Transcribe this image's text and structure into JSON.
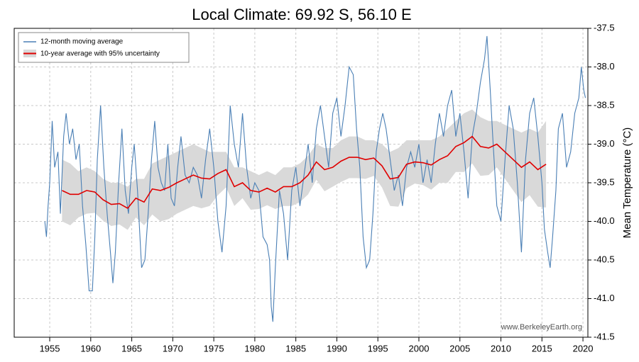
{
  "chart_data": {
    "type": "line",
    "title": "Local Climate: 69.92 S, 56.10 E",
    "y_label": "Mean Temperature (°C)",
    "watermark": "www.BerkeleyEarth.org",
    "xlim": [
      1950.67,
      2020.6
    ],
    "ylim": [
      -41.5,
      -37.5
    ],
    "xticks": [
      1955,
      1960,
      1965,
      1970,
      1975,
      1980,
      1985,
      1990,
      1995,
      2000,
      2005,
      2010,
      2015,
      2020
    ],
    "yticks": [
      -37.5,
      {
        "value": -38,
        "label": "-38.0"
      },
      -38.5,
      {
        "value": -39,
        "label": "-39.0"
      },
      -39.5,
      {
        "value": -40,
        "label": "-40.0"
      },
      -40.5,
      {
        "value": -41,
        "label": "-41.0"
      },
      -41.5
    ],
    "grid": true,
    "legend_position": "upper left",
    "series": [
      {
        "name": "12-month moving average",
        "color": "#4a7fb5",
        "x": [
          1954.4,
          1954.6,
          1954.8,
          1955.0,
          1955.3,
          1955.6,
          1956.0,
          1956.3,
          1956.7,
          1957.0,
          1957.4,
          1957.8,
          1958.2,
          1958.6,
          1959.0,
          1959.4,
          1959.8,
          1960.2,
          1960.5,
          1960.8,
          1961.2,
          1961.6,
          1962.0,
          1962.4,
          1962.7,
          1963.0,
          1963.4,
          1963.8,
          1964.2,
          1964.6,
          1965.0,
          1965.3,
          1965.7,
          1966.2,
          1966.6,
          1967.0,
          1967.4,
          1967.8,
          1968.2,
          1968.6,
          1969.0,
          1969.4,
          1969.8,
          1970.2,
          1970.6,
          1971.0,
          1971.5,
          1972.0,
          1972.5,
          1973.0,
          1973.5,
          1974.0,
          1974.5,
          1975.0,
          1975.5,
          1976.0,
          1976.5,
          1977.0,
          1977.5,
          1978.0,
          1978.5,
          1979.0,
          1979.5,
          1980.0,
          1980.5,
          1981.0,
          1981.5,
          1981.8,
          1982.0,
          1982.2,
          1982.5,
          1983.0,
          1983.5,
          1984.0,
          1984.5,
          1985.0,
          1985.5,
          1986.0,
          1986.5,
          1987.0,
          1987.5,
          1988.0,
          1988.5,
          1989.0,
          1989.5,
          1990.0,
          1990.5,
          1991.0,
          1991.5,
          1992.0,
          1992.4,
          1992.8,
          1993.2,
          1993.6,
          1994.0,
          1994.4,
          1994.8,
          1995.2,
          1995.6,
          1996.0,
          1996.5,
          1997.0,
          1997.5,
          1998.0,
          1998.5,
          1999.0,
          1999.5,
          2000.0,
          2000.5,
          2001.0,
          2001.5,
          2002.0,
          2002.5,
          2003.0,
          2003.5,
          2004.0,
          2004.5,
          2005.0,
          2005.5,
          2006.0,
          2006.5,
          2007.0,
          2007.5,
          2008.0,
          2008.3,
          2008.7,
          2009.0,
          2009.5,
          2010.0,
          2010.5,
          2011.0,
          2011.5,
          2012.0,
          2012.5,
          2013.0,
          2013.5,
          2014.0,
          2014.5,
          2015.0,
          2015.3,
          2015.7,
          2016.0,
          2016.3,
          2016.7,
          2017.0,
          2017.5,
          2018.0,
          2018.5,
          2019.0,
          2019.5,
          2019.8,
          2020.1,
          2020.3
        ],
        "values": [
          -40.0,
          -40.2,
          -39.8,
          -39.5,
          -38.7,
          -39.3,
          -39.1,
          -39.9,
          -38.9,
          -38.6,
          -39.0,
          -38.8,
          -39.2,
          -39.0,
          -39.8,
          -40.3,
          -40.9,
          -40.9,
          -40.2,
          -39.2,
          -38.5,
          -39.3,
          -39.9,
          -40.4,
          -40.8,
          -40.4,
          -39.5,
          -38.8,
          -39.6,
          -39.9,
          -39.3,
          -39.0,
          -39.6,
          -40.6,
          -40.5,
          -39.9,
          -39.2,
          -38.7,
          -39.3,
          -39.5,
          -39.6,
          -39.0,
          -39.7,
          -39.8,
          -39.3,
          -38.9,
          -39.4,
          -39.5,
          -39.3,
          -39.4,
          -39.7,
          -39.2,
          -38.8,
          -39.3,
          -40.0,
          -40.4,
          -39.8,
          -38.5,
          -39.0,
          -39.3,
          -38.6,
          -39.3,
          -39.7,
          -39.5,
          -39.6,
          -40.2,
          -40.3,
          -40.5,
          -41.1,
          -41.3,
          -40.6,
          -39.6,
          -39.9,
          -40.5,
          -39.6,
          -39.3,
          -39.8,
          -39.4,
          -39.0,
          -39.5,
          -38.8,
          -38.5,
          -38.9,
          -39.3,
          -38.6,
          -38.4,
          -38.9,
          -38.5,
          -38.0,
          -38.1,
          -38.8,
          -39.3,
          -40.2,
          -40.6,
          -40.5,
          -39.9,
          -39.1,
          -38.8,
          -38.6,
          -38.8,
          -39.2,
          -39.6,
          -39.4,
          -39.8,
          -39.3,
          -39.1,
          -39.3,
          -39.0,
          -39.5,
          -39.2,
          -39.5,
          -39.0,
          -38.6,
          -38.9,
          -38.5,
          -38.3,
          -38.9,
          -38.6,
          -39.1,
          -39.7,
          -38.9,
          -38.6,
          -38.2,
          -37.9,
          -37.6,
          -38.3,
          -38.9,
          -39.8,
          -40.0,
          -39.2,
          -38.5,
          -38.8,
          -39.5,
          -40.4,
          -39.2,
          -38.6,
          -38.4,
          -38.9,
          -39.5,
          -40.1,
          -40.4,
          -40.6,
          -40.2,
          -39.6,
          -38.8,
          -38.6,
          -39.3,
          -39.1,
          -38.6,
          -38.4,
          -38.0,
          -38.3,
          -38.4
        ]
      },
      {
        "name": "10-year average with 95% uncertainty",
        "color": "#e00000",
        "band_color": "#d9d9d9",
        "x": [
          1956.5,
          1957.5,
          1958.5,
          1959.5,
          1960.5,
          1961.5,
          1962.5,
          1963.5,
          1964.5,
          1965.5,
          1966.5,
          1967.5,
          1968.5,
          1969.5,
          1970.5,
          1971.5,
          1972.5,
          1973.5,
          1974.5,
          1975.5,
          1976.5,
          1977.5,
          1978.5,
          1979.5,
          1980.5,
          1981.5,
          1982.5,
          1983.5,
          1984.5,
          1985.5,
          1986.5,
          1987.5,
          1988.5,
          1989.5,
          1990.5,
          1991.5,
          1992.5,
          1993.5,
          1994.5,
          1995.5,
          1996.5,
          1997.5,
          1998.5,
          1999.5,
          2000.5,
          2001.5,
          2002.5,
          2003.5,
          2004.5,
          2005.5,
          2006.5,
          2007.5,
          2008.5,
          2009.5,
          2010.5,
          2011.5,
          2012.5,
          2013.5,
          2014.5,
          2015.5
        ],
        "values": [
          -39.6,
          -39.65,
          -39.65,
          -39.6,
          -39.62,
          -39.72,
          -39.78,
          -39.77,
          -39.83,
          -39.7,
          -39.75,
          -39.58,
          -39.6,
          -39.56,
          -39.5,
          -39.45,
          -39.4,
          -39.44,
          -39.45,
          -39.38,
          -39.33,
          -39.55,
          -39.5,
          -39.6,
          -39.62,
          -39.57,
          -39.62,
          -39.55,
          -39.55,
          -39.5,
          -39.4,
          -39.23,
          -39.33,
          -39.3,
          -39.22,
          -39.17,
          -39.17,
          -39.2,
          -39.18,
          -39.28,
          -39.45,
          -39.43,
          -39.26,
          -39.23,
          -39.24,
          -39.27,
          -39.2,
          -39.15,
          -39.03,
          -38.98,
          -38.9,
          -39.03,
          -39.05,
          -39.0,
          -39.1,
          -39.2,
          -39.3,
          -39.23,
          -39.33,
          -39.26
        ],
        "upper": [
          -39.2,
          -39.25,
          -39.35,
          -39.3,
          -39.35,
          -39.45,
          -39.5,
          -39.5,
          -39.55,
          -39.45,
          -39.45,
          -39.25,
          -39.2,
          -39.15,
          -39.1,
          -39.05,
          -39.0,
          -39.05,
          -39.1,
          -39.1,
          -39.1,
          -39.3,
          -39.3,
          -39.35,
          -39.4,
          -39.35,
          -39.4,
          -39.3,
          -39.3,
          -39.25,
          -39.15,
          -39.0,
          -39.05,
          -39.05,
          -38.95,
          -38.9,
          -38.9,
          -38.95,
          -38.95,
          -39.0,
          -39.1,
          -39.05,
          -38.95,
          -38.95,
          -38.95,
          -38.95,
          -38.9,
          -38.8,
          -38.7,
          -38.6,
          -38.55,
          -38.65,
          -38.7,
          -38.7,
          -38.75,
          -38.8,
          -38.85,
          -38.8,
          -38.85,
          -38.7
        ],
        "lower": [
          -40.0,
          -40.05,
          -39.95,
          -39.9,
          -39.89,
          -39.99,
          -40.06,
          -40.04,
          -40.11,
          -39.95,
          -40.05,
          -39.91,
          -40.0,
          -39.97,
          -39.9,
          -39.85,
          -39.8,
          -39.83,
          -39.8,
          -39.66,
          -39.56,
          -39.8,
          -39.7,
          -39.85,
          -39.84,
          -39.79,
          -39.84,
          -39.8,
          -39.8,
          -39.75,
          -39.65,
          -39.46,
          -39.61,
          -39.55,
          -39.49,
          -39.44,
          -39.44,
          -39.45,
          -39.41,
          -39.56,
          -39.8,
          -39.81,
          -39.57,
          -39.51,
          -39.53,
          -39.59,
          -39.5,
          -39.5,
          -39.36,
          -39.36,
          -39.25,
          -39.41,
          -39.4,
          -39.3,
          -39.45,
          -39.6,
          -39.75,
          -39.66,
          -39.81,
          -39.82
        ]
      }
    ]
  }
}
